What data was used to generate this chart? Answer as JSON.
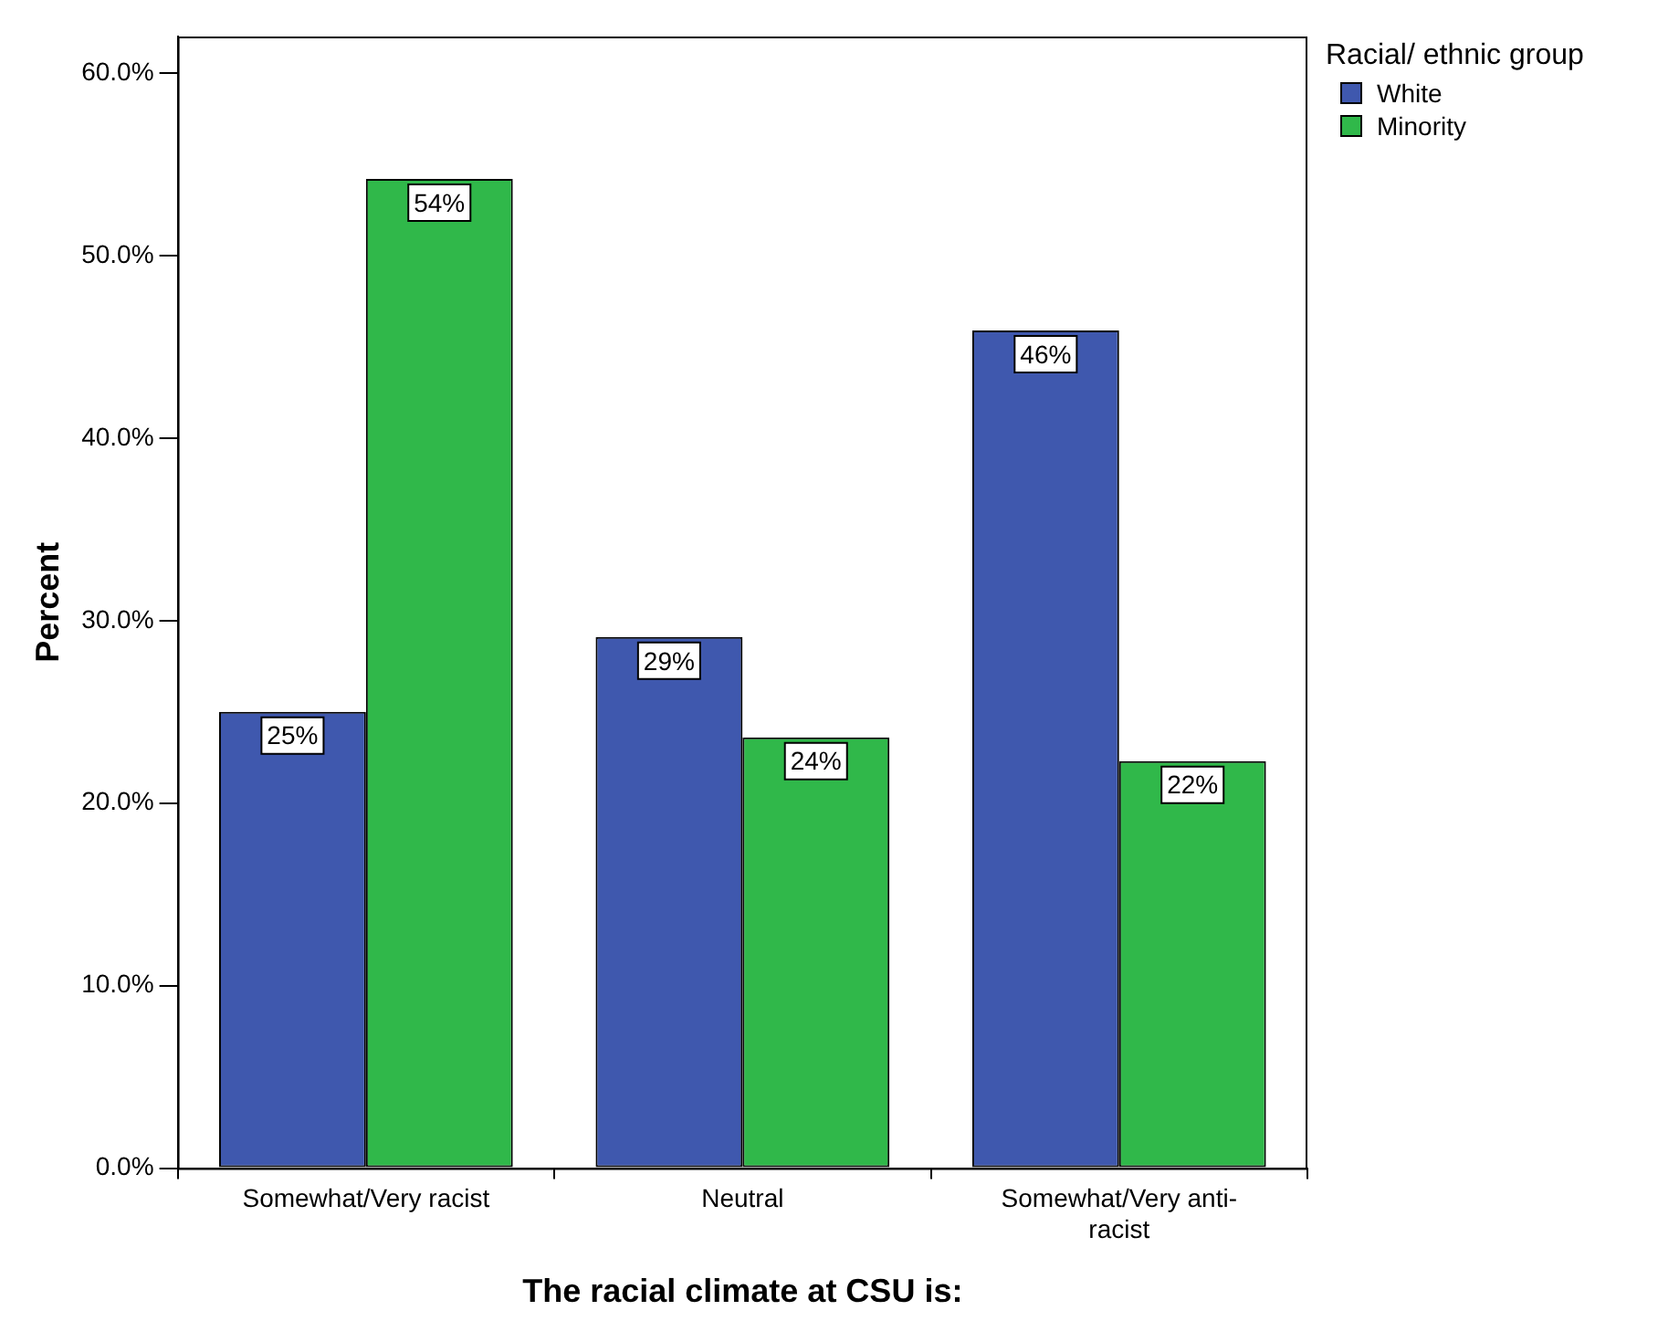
{
  "chart_data": {
    "type": "bar",
    "xlabel": "The racial climate at CSU is:",
    "ylabel": "Percent",
    "legend_title": "Racial/ ethnic group",
    "categories": [
      "Somewhat/Very racist",
      "Neutral",
      "Somewhat/Very anti-racist"
    ],
    "series": [
      {
        "name": "White",
        "color": "#3f58ae",
        "values": [
          25.0,
          29.1,
          45.9
        ],
        "value_labels": [
          "25%",
          "29%",
          "46%"
        ]
      },
      {
        "name": "Minority",
        "color": "#30b84a",
        "values": [
          54.2,
          23.6,
          22.3
        ],
        "value_labels": [
          "54%",
          "24%",
          "22%"
        ]
      }
    ],
    "ylim": [
      0,
      62
    ],
    "yticks": [
      {
        "value": 0,
        "label": "0.0%"
      },
      {
        "value": 10,
        "label": "10.0%"
      },
      {
        "value": 20,
        "label": "20.0%"
      },
      {
        "value": 30,
        "label": "30.0%"
      },
      {
        "value": 40,
        "label": "40.0%"
      },
      {
        "value": 50,
        "label": "50.0%"
      },
      {
        "value": 60,
        "label": "60.0%"
      }
    ],
    "grid": false,
    "legend": "top right"
  }
}
